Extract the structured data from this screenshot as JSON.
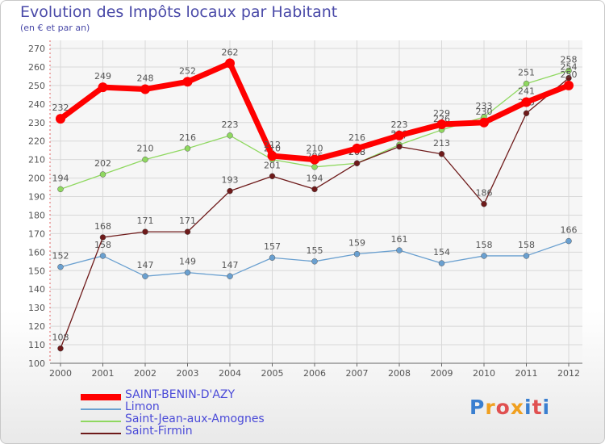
{
  "chart_data": {
    "type": "line",
    "title": "Evolution des Impôts locaux par Habitant",
    "subtitle": "(en € et par an)",
    "xlabel": "",
    "ylabel": "",
    "ylim": [
      100,
      270
    ],
    "y_ticks": [
      100,
      110,
      120,
      130,
      140,
      150,
      160,
      170,
      180,
      190,
      200,
      210,
      220,
      230,
      240,
      250,
      260,
      270
    ],
    "grid": true,
    "x": [
      "2000",
      "2001",
      "2002",
      "2003",
      "2004",
      "2005",
      "2006",
      "2007",
      "2008",
      "2009",
      "2010",
      "2011",
      "2012"
    ],
    "series": [
      {
        "name": "SAINT-BENIN-D'AZY",
        "color": "#ff0000",
        "values": [
          232,
          249,
          248,
          252,
          262,
          212,
          210,
          216,
          223,
          229,
          230,
          241,
          250
        ]
      },
      {
        "name": "Limon",
        "color": "#6aa0d0",
        "values": [
          152,
          158,
          147,
          149,
          147,
          157,
          155,
          159,
          161,
          154,
          158,
          158,
          166
        ]
      },
      {
        "name": "Saint-Jean-aux-Amognes",
        "color": "#8fd860",
        "values": [
          194,
          202,
          210,
          216,
          223,
          210,
          206,
          208,
          218,
          226,
          233,
          251,
          258
        ]
      },
      {
        "name": "Saint-Firmin",
        "color": "#6e1a1a",
        "values": [
          108,
          168,
          171,
          171,
          193,
          201,
          194,
          208,
          217,
          213,
          186,
          235,
          254
        ]
      }
    ],
    "legend_position": "bottom-left"
  },
  "logo": {
    "text": "Proxiti"
  }
}
